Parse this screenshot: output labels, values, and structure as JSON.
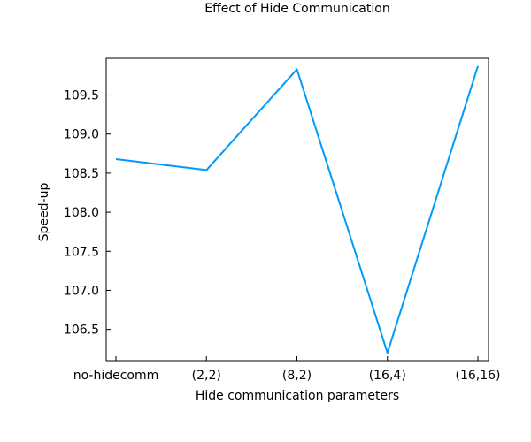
{
  "chart_data": {
    "type": "line",
    "title": "Effect of Hide Communication",
    "xlabel": "Hide communication parameters",
    "ylabel": "Speed-up",
    "categories": [
      "no-hidecomm",
      "(2,2)",
      "(8,2)",
      "(16,4)",
      "(16,16)"
    ],
    "series": [
      {
        "values": [
          108.68,
          108.54,
          109.83,
          106.2,
          109.87
        ]
      }
    ],
    "ylim": [
      106.1,
      109.97
    ],
    "yticks": [
      106.5,
      107.0,
      107.5,
      108.0,
      108.5,
      109.0,
      109.5
    ],
    "ytick_labels": [
      "106.5",
      "107.0",
      "107.5",
      "108.0",
      "108.5",
      "109.0",
      "109.5"
    ],
    "grid": false,
    "line_color": "#009AFA"
  }
}
